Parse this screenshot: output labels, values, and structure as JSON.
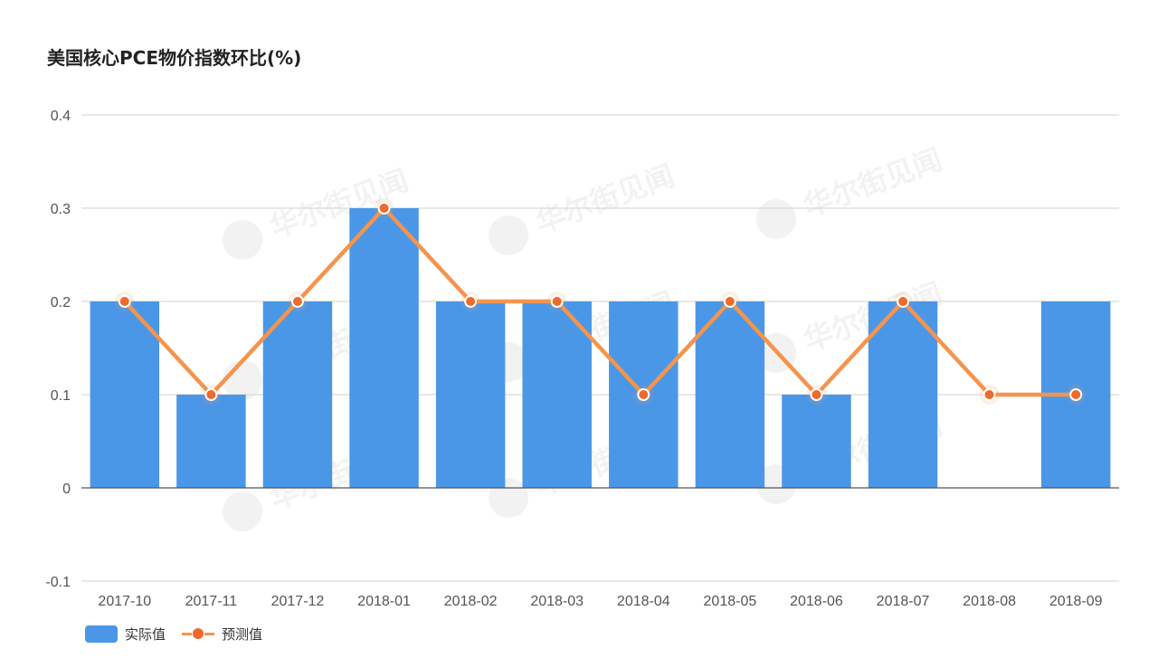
{
  "chart_data": {
    "type": "bar",
    "title": "美国核心PCE物价指数环比(%)",
    "xlabel": "",
    "ylabel": "",
    "categories": [
      "2017-10",
      "2017-11",
      "2017-12",
      "2018-01",
      "2018-02",
      "2018-03",
      "2018-04",
      "2018-05",
      "2018-06",
      "2018-07",
      "2018-08",
      "2018-09"
    ],
    "ylim": [
      -0.1,
      0.4
    ],
    "yticks": [
      "-0.1",
      "0",
      "0.1",
      "0.2",
      "0.3",
      "0.4"
    ],
    "grid": true,
    "legend_position": "bottom-left",
    "series": [
      {
        "name": "实际值",
        "type": "bar",
        "color": "#4a97e8",
        "values": [
          0.2,
          0.1,
          0.2,
          0.3,
          0.2,
          0.2,
          0.2,
          0.2,
          0.1,
          0.2,
          null,
          0.2
        ]
      },
      {
        "name": "预测值",
        "type": "line",
        "color": "#f5944d",
        "marker_color": "#ef6a2b",
        "values": [
          0.2,
          0.1,
          0.2,
          0.3,
          0.2,
          0.2,
          0.1,
          0.2,
          0.1,
          0.2,
          0.1,
          0.1
        ]
      }
    ]
  },
  "watermark": "华尔街见闻"
}
